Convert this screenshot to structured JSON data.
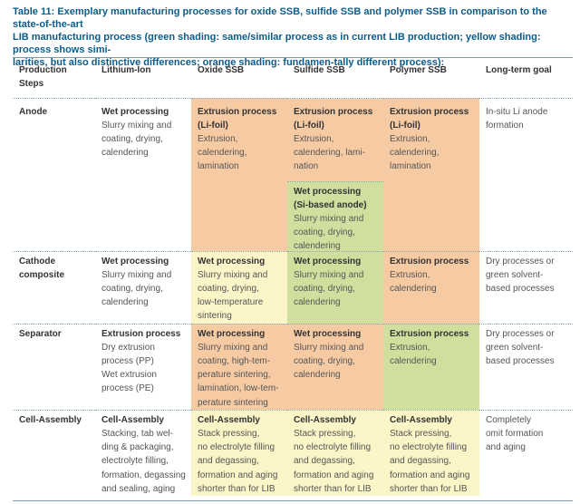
{
  "caption": {
    "line1": "Table 11: Exemplary manufacturing processes for oxide SSB, sulfide SSB and polymer SSB in comparison to the state-of-the-art",
    "line2": "LIB manufacturing process (green shading: same/similar process as in current LIB production; yellow shading: process shows simi-",
    "line3": "larities, but also distinctive differences; orange shading: fundamen-tally different process):"
  },
  "headers": {
    "steps_1": "Production",
    "steps_2": "Steps",
    "li_ion": "Lithium-Ion",
    "oxide": "Oxide SSB",
    "sulfide": "Sulfide SSB",
    "polymer": "Polymer SSB",
    "goal": "Long-term goal"
  },
  "colors": {
    "green": "#d1df9e",
    "yellow": "#fbf5c8",
    "orange": "#f6cba4",
    "caption": "#0b5c8a"
  },
  "rows": {
    "anode": {
      "label": "Anode",
      "li_ion": {
        "title": "Wet processing",
        "l1": "Slurry mixing and",
        "l2": "coating, drying,",
        "l3": "calendering"
      },
      "oxide": {
        "title1": "Extrusion process",
        "title2": "(Li-foil)",
        "l1": "Extrusion,",
        "l2": "calendering,",
        "l3": "lamination"
      },
      "sulfide_a": {
        "title1": "Extrusion process",
        "title2": "(Li-foil)",
        "l1": "Extrusion,",
        "l2": "calendering, lami-",
        "l3": "nation"
      },
      "sulfide_b": {
        "title1": "Wet processing",
        "title2": "(Si-based anode)",
        "l1": "Slurry mixing and",
        "l2": "coating, drying,",
        "l3": "calendering"
      },
      "polymer": {
        "title1": "Extrusion process",
        "title2": "(Li-foil)",
        "l1": "Extrusion,",
        "l2": "calendering,",
        "l3": "lamination"
      },
      "goal": {
        "l1": "In-situ Li anode",
        "l2": "formation"
      }
    },
    "cathode": {
      "label1": "Cathode",
      "label2": "composite",
      "li_ion": {
        "title": "Wet processing",
        "l1": "Slurry mixing and",
        "l2": "coating, drying,",
        "l3": "calendering"
      },
      "oxide": {
        "title": "Wet processing",
        "l1": "Slurry mixing and",
        "l2": "coating, drying,",
        "l3": "low-temperature",
        "l4": "sintering"
      },
      "sulfide": {
        "title": "Wet processing",
        "l1": "Slurry mixing and",
        "l2": "coating, drying,",
        "l3": "calendering"
      },
      "polymer": {
        "title": "Extrusion process",
        "l1": "Extrusion,",
        "l2": "calendering"
      },
      "goal": {
        "l1": "Dry processes or",
        "l2": "green solvent-",
        "l3": "based processes"
      }
    },
    "separator": {
      "label": "Separator",
      "li_ion": {
        "title": "Extrusion process",
        "l1": "Dry extrusion",
        "l2": "process (PP)",
        "l3": "Wet extrusion",
        "l4": "process (PE)"
      },
      "oxide": {
        "title": "Wet processing",
        "l1": "Slurry mixing and",
        "l2": "coating, high-tem-",
        "l3": "perature sintering,",
        "l4": "lamination, low-tem-",
        "l5": "perature sintering"
      },
      "sulfide": {
        "title": "Wet processing",
        "l1": "Slurry mixing and",
        "l2": "coating, drying,",
        "l3": "calendering"
      },
      "polymer": {
        "title": "Extrusion process",
        "l1": "Extrusion,",
        "l2": "calendering"
      },
      "goal": {
        "l1": "Dry processes or",
        "l2": "green solvent-",
        "l3": "based processes"
      }
    },
    "cell": {
      "label": "Cell-Assembly",
      "li_ion": {
        "title": "Cell-Assembly",
        "l1": "Stacking, tab wel-",
        "l2": "ding & packaging,",
        "l3": "electrolyte filling,",
        "l4": "formation, degassing",
        "l5": "and sealing, aging"
      },
      "oxide": {
        "title": "Cell-Assembly",
        "l1": "Stack pressing,",
        "l2": "no electrolyte filling",
        "l3": "and degassing,",
        "l4": "formation and aging",
        "l5": "shorter than for LIB"
      },
      "sulfide": {
        "title": "Cell-Assembly",
        "l1": "Stack pressing,",
        "l2": "no electrolyte filling",
        "l3": "and degassing,",
        "l4": "formation and aging",
        "l5": "shorter than for LIB"
      },
      "polymer": {
        "title": "Cell-Assembly",
        "l1": "Stack pressing,",
        "l2": "no electrolyte filling",
        "l3": "and degassing,",
        "l4": "formation and aging",
        "l5": "shorter than for LIB"
      },
      "goal": {
        "l1": "Completely",
        "l2": "omit formation",
        "l3": "and aging"
      }
    }
  }
}
